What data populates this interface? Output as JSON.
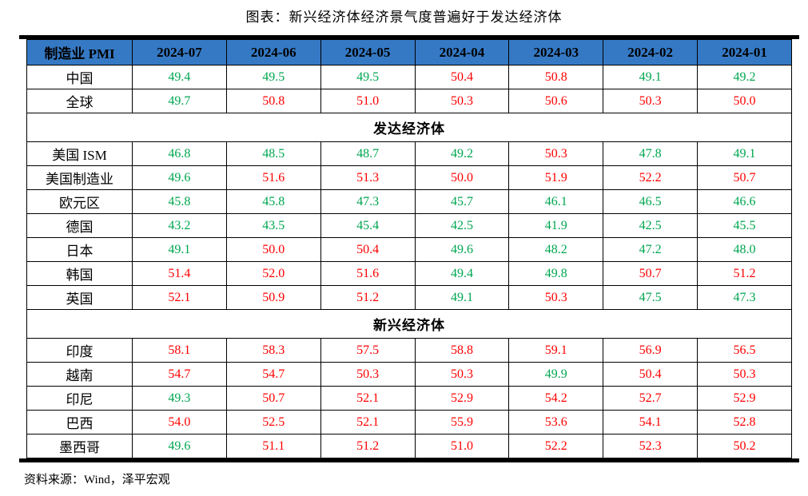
{
  "title": "图表：新兴经济体经济景气度普遍好于发达经济体",
  "source": "资料来源：Wind，泽平宏观",
  "colors": {
    "header_bg": "#3579C4",
    "header_text": "#000000",
    "value_at_or_above_50": "#FF0000",
    "value_below_50": "#00A650",
    "border": "#000000"
  },
  "chart_data": {
    "type": "table",
    "title": "图表：新兴经济体经济景气度普遍好于发达经济体",
    "source": "资料来源：Wind，泽平宏观",
    "columns": [
      "制造业 PMI",
      "2024-07",
      "2024-06",
      "2024-05",
      "2024-04",
      "2024-03",
      "2024-02",
      "2024-01"
    ],
    "value_color_rule": {
      "threshold": 50,
      "at_or_above": "#FF0000",
      "below": "#00A650"
    },
    "rows": [
      {
        "label": "中国",
        "values": [
          "49.4",
          "49.5",
          "49.5",
          "50.4",
          "50.8",
          "49.1",
          "49.2"
        ]
      },
      {
        "label": "全球",
        "values": [
          "49.7",
          "50.8",
          "51.0",
          "50.3",
          "50.6",
          "50.3",
          "50.0"
        ]
      },
      {
        "section": "发达经济体"
      },
      {
        "label": "美国 ISM",
        "values": [
          "46.8",
          "48.5",
          "48.7",
          "49.2",
          "50.3",
          "47.8",
          "49.1"
        ]
      },
      {
        "label": "美国制造业",
        "values": [
          "49.6",
          "51.6",
          "51.3",
          "50.0",
          "51.9",
          "52.2",
          "50.7"
        ]
      },
      {
        "label": "欧元区",
        "values": [
          "45.8",
          "45.8",
          "47.3",
          "45.7",
          "46.1",
          "46.5",
          "46.6"
        ]
      },
      {
        "label": "德国",
        "values": [
          "43.2",
          "43.5",
          "45.4",
          "42.5",
          "41.9",
          "42.5",
          "45.5"
        ]
      },
      {
        "label": "日本",
        "values": [
          "49.1",
          "50.0",
          "50.4",
          "49.6",
          "48.2",
          "47.2",
          "48.0"
        ]
      },
      {
        "label": "韩国",
        "values": [
          "51.4",
          "52.0",
          "51.6",
          "49.4",
          "49.8",
          "50.7",
          "51.2"
        ]
      },
      {
        "label": "英国",
        "values": [
          "52.1",
          "50.9",
          "51.2",
          "49.1",
          "50.3",
          "47.5",
          "47.3"
        ]
      },
      {
        "section": "新兴经济体"
      },
      {
        "label": "印度",
        "values": [
          "58.1",
          "58.3",
          "57.5",
          "58.8",
          "59.1",
          "56.9",
          "56.5"
        ]
      },
      {
        "label": "越南",
        "values": [
          "54.7",
          "54.7",
          "50.3",
          "50.3",
          "49.9",
          "50.4",
          "50.3"
        ]
      },
      {
        "label": "印尼",
        "values": [
          "49.3",
          "50.7",
          "52.1",
          "52.9",
          "54.2",
          "52.7",
          "52.9"
        ]
      },
      {
        "label": "巴西",
        "values": [
          "54.0",
          "52.5",
          "52.1",
          "55.9",
          "53.6",
          "54.1",
          "52.8"
        ]
      },
      {
        "label": "墨西哥",
        "values": [
          "49.6",
          "51.1",
          "51.2",
          "51.0",
          "52.2",
          "52.3",
          "50.2"
        ]
      }
    ]
  }
}
